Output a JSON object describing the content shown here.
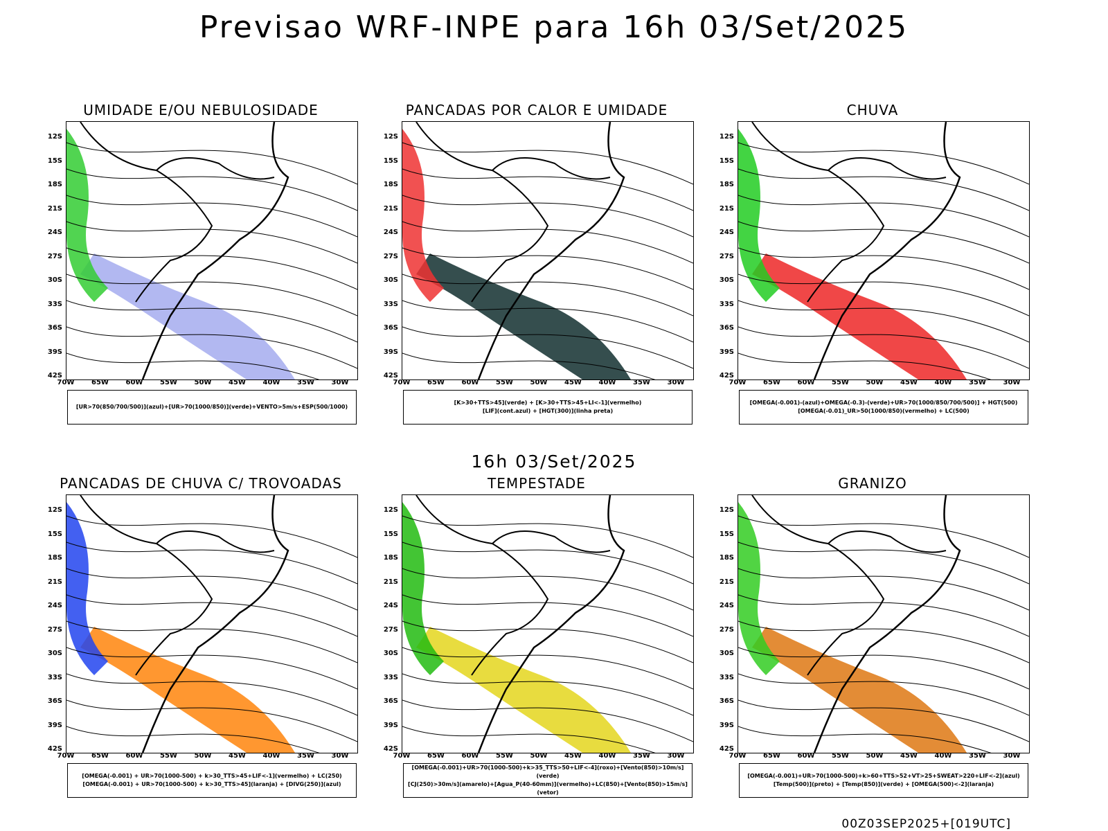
{
  "title": "Previsao WRF-INPE  para 16h 03/Set/2025",
  "mid_date": "16h 03/Set/2025",
  "footer": "00Z03SEP2025+[019UTC]",
  "lat_labels": [
    "12S",
    "15S",
    "18S",
    "21S",
    "24S",
    "27S",
    "30S",
    "33S",
    "36S",
    "39S",
    "42S"
  ],
  "lon_labels": [
    "70W",
    "65W",
    "60W",
    "55W",
    "50W",
    "45W",
    "40W",
    "35W",
    "30W"
  ],
  "panels": [
    {
      "title": "UMIDADE E/OU NEBULOSIDADE",
      "legend1": "[UR>70(850/700/500)](azul)+[UR>70(1000/850)](verde)+VENTO>5m/s+ESP(500/1000)",
      "legend2": "",
      "fill1": "#aab0f0",
      "fill2": "#33cc33"
    },
    {
      "title": "PANCADAS POR CALOR E UMIDADE",
      "legend1": "[K>30+TTS>45](verde) + [K>30+TTS>45+LI<-1](vermelho)",
      "legend2": "[LIF](cont.azul) + [HGT(300)](linha preta)",
      "fill1": "#1f3b3b",
      "fill2": "#ee3333"
    },
    {
      "title": "CHUVA",
      "legend1": "[OMEGA(-0.001)-(azul)+OMEGA(-0.3)-(verde)+UR>70(1000/850/700/500)] + HGT(500)",
      "legend2": "[OMEGA(-0.01)_UR>50(1000/850)(vermelho) + LC(500)",
      "fill1": "#ee3333",
      "fill2": "#22cc22"
    },
    {
      "title": "PANCADAS DE CHUVA C/ TROVOADAS",
      "legend1": "[OMEGA(-0.001) + UR>70(1000-500) + k>30_TTS>45+LIF<-1](vermelho) + LC(250)",
      "legend2": "[OMEGA(-0.001) + UR>70(1000-500) + k>30_TTS>45](laranja) + [DIVG(250)](azul)",
      "fill1": "#ff8c1a",
      "fill2": "#2244ee"
    },
    {
      "title": "TEMPESTADE",
      "legend1": "[OMEGA(-0.001)+UR>70(1000-500)+k>35_TTS>50+LIF<-4](roxo)+[Vento(850)>10m/s](verde)",
      "legend2": "[CJ(250)>30m/s](amarelo)+[Agua_P(40-60mm)](vermelho)+LC(850)+[Vento(850)>15m/s](vetor)",
      "fill1": "#e6d82a",
      "fill2": "#22bb11"
    },
    {
      "title": "GRANIZO",
      "legend1": "[OMEGA(-0.001)+UR>70(1000-500)+k>60+TTS>52+VT>25+SWEAT>220+LIF<-2](azul)",
      "legend2": "[Temp(500)](preto) + [Temp(850)](verde) + [OMEGA(500)<-2](laranja)",
      "fill1": "#e08020",
      "fill2": "#33cc22"
    }
  ]
}
